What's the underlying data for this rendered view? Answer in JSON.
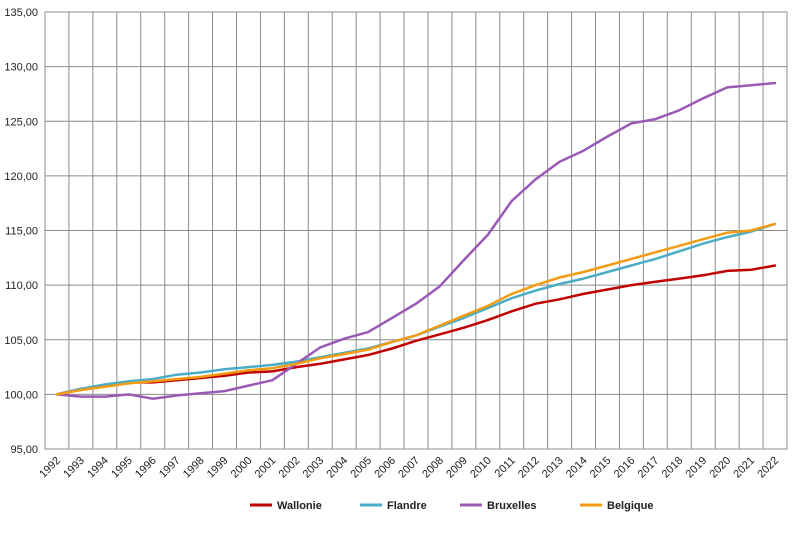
{
  "chart_data": {
    "type": "line",
    "title": "",
    "xlabel": "",
    "ylabel": "",
    "x": [
      "1992",
      "1993",
      "1994",
      "1995",
      "1996",
      "1997",
      "1998",
      "1999",
      "2000",
      "2001",
      "2002",
      "2003",
      "2004",
      "2005",
      "2006",
      "2007",
      "2008",
      "2009",
      "2010",
      "2011",
      "2012",
      "2013",
      "2014",
      "2015",
      "2016",
      "2017",
      "2018",
      "2019",
      "2020",
      "2021",
      "2022"
    ],
    "yticks": [
      "95,00",
      "100,00",
      "105,00",
      "110,00",
      "115,00",
      "120,00",
      "125,00",
      "130,00",
      "135,00"
    ],
    "ylim": [
      95,
      135
    ],
    "grid": true,
    "legend_position": "bottom",
    "series": [
      {
        "name": "Wallonie",
        "color": "#c00000",
        "values": [
          100.0,
          100.5,
          100.8,
          101.1,
          101.1,
          101.3,
          101.5,
          101.7,
          102.0,
          102.1,
          102.5,
          102.8,
          103.2,
          103.6,
          104.2,
          104.9,
          105.5,
          106.1,
          106.8,
          107.6,
          108.3,
          108.7,
          109.2,
          109.6,
          110.0,
          110.3,
          110.6,
          110.9,
          111.3,
          111.4,
          111.8
        ]
      },
      {
        "name": "Flandre",
        "color": "#4bacc6",
        "values": [
          100.0,
          100.5,
          100.9,
          101.2,
          101.4,
          101.8,
          102.0,
          102.3,
          102.5,
          102.7,
          103.0,
          103.4,
          103.8,
          104.2,
          104.8,
          105.4,
          106.2,
          107.0,
          107.9,
          108.8,
          109.5,
          110.1,
          110.6,
          111.2,
          111.8,
          112.4,
          113.1,
          113.8,
          114.4,
          114.9,
          115.6
        ]
      },
      {
        "name": "Bruxelles",
        "color": "#9b59b6",
        "values": [
          100.0,
          99.8,
          99.8,
          100.0,
          99.6,
          99.9,
          100.1,
          100.3,
          100.8,
          101.3,
          102.8,
          104.3,
          105.1,
          105.7,
          107.0,
          108.3,
          109.9,
          112.3,
          114.6,
          117.7,
          119.7,
          121.3,
          122.3,
          123.6,
          124.8,
          125.2,
          126.0,
          127.1,
          128.1,
          128.3,
          128.5
        ]
      },
      {
        "name": "Belgique",
        "color": "#f39c12",
        "values": [
          100.0,
          100.4,
          100.7,
          101.0,
          101.2,
          101.4,
          101.6,
          101.9,
          102.2,
          102.4,
          102.8,
          103.3,
          103.7,
          104.1,
          104.8,
          105.4,
          106.3,
          107.2,
          108.1,
          109.2,
          110.0,
          110.7,
          111.2,
          111.8,
          112.4,
          113.0,
          113.6,
          114.2,
          114.8,
          115.0,
          115.6
        ]
      }
    ]
  }
}
